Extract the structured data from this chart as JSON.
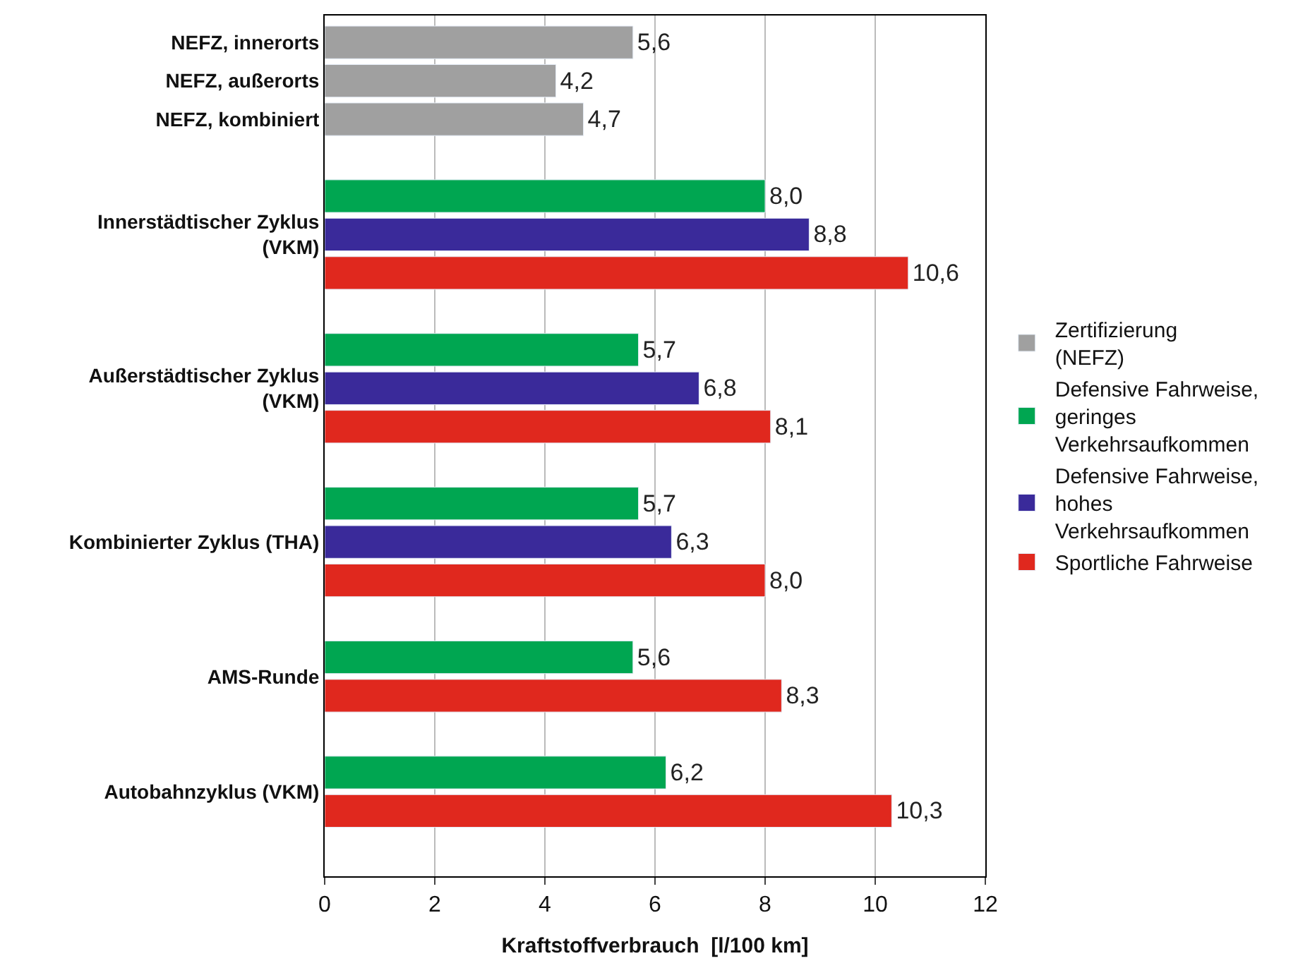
{
  "chart_data": {
    "type": "bar",
    "orientation": "horizontal",
    "categories": [
      "NEFZ, innerorts",
      "NEFZ, außerorts",
      "NEFZ, kombiniert",
      "Innerstädtischer Zyklus (VKM)",
      "Außerstädtischer Zyklus (VKM)",
      "Kombinierter Zyklus (THA)",
      "AMS-Runde",
      "Autobahnzyklus (VKM)"
    ],
    "series": [
      {
        "name": "Zertifizierung (NEFZ)",
        "color": "#a0a0a0",
        "values": [
          5.6,
          4.2,
          4.7,
          null,
          null,
          null,
          null,
          null
        ],
        "value_labels": [
          "5,6",
          "4,2",
          "4,7",
          null,
          null,
          null,
          null,
          null
        ]
      },
      {
        "name": "Defensive Fahrweise, geringes Verkehrsaufkommen",
        "color": "#00a651",
        "values": [
          null,
          null,
          null,
          8.0,
          5.7,
          5.7,
          5.6,
          6.2
        ],
        "value_labels": [
          null,
          null,
          null,
          "8,0",
          "5,7",
          "5,7",
          "5,6",
          "6,2"
        ]
      },
      {
        "name": "Defensive Fahrweise, hohes Verkehrsaufkommen",
        "color": "#3a2a9a",
        "values": [
          null,
          null,
          null,
          8.8,
          6.8,
          6.3,
          null,
          null
        ],
        "value_labels": [
          null,
          null,
          null,
          "8,8",
          "6,8",
          "6,3",
          null,
          null
        ]
      },
      {
        "name": "Sportliche Fahrweise",
        "color": "#e0281e",
        "values": [
          null,
          null,
          null,
          10.6,
          8.1,
          8.0,
          8.3,
          10.3
        ],
        "value_labels": [
          null,
          null,
          null,
          "10,6",
          "8,1",
          "8,0",
          "8,3",
          "10,3"
        ]
      }
    ],
    "xlabel": "Kraftstoffverbrauch  [l/100 km]",
    "xlim": [
      0,
      12
    ],
    "xticks": [
      0,
      2,
      4,
      6,
      8,
      10,
      12
    ],
    "grid": "x",
    "legend": "right"
  }
}
